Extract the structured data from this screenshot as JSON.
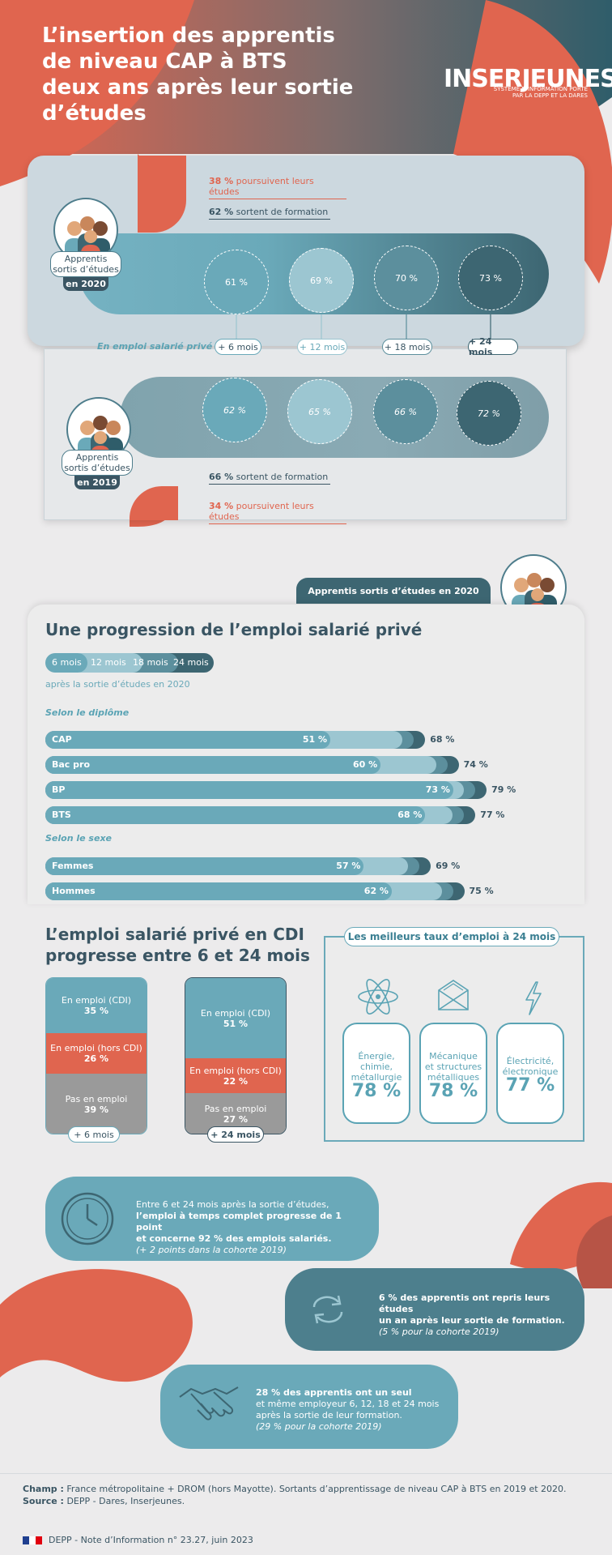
{
  "header": {
    "title_lines": [
      "L’insertion des apprentis",
      "de niveau CAP à BTS",
      "deux ans après leur sortie",
      "d’études"
    ],
    "logo": "INSERJEUNES",
    "logo_sub_1": "SYSTÈME D’INFORMATION PORTÉ",
    "logo_sub_2": "PAR LA DEPP ET LA DARES"
  },
  "cohorts": {
    "c2020": {
      "studies_pct": "38 %",
      "studies_text": "poursuivent leurs études",
      "leave_pct": "62 %",
      "leave_text": "sortent de formation",
      "badge_line1": "Apprentis",
      "badge_line2": "sortis d’études",
      "year": "en 2020",
      "rates": [
        "61 %",
        "69 %",
        "70 %",
        "73 %"
      ]
    },
    "c2019": {
      "studies_pct": "34 %",
      "studies_text": "poursuivent leurs études",
      "leave_pct": "66 %",
      "leave_text": "sortent de formation",
      "badge_line1": "Apprentis",
      "badge_line2": "sortis d’études",
      "year": "en 2019",
      "rates": [
        "62 %",
        "65 %",
        "66 %",
        "72 %"
      ]
    },
    "employment_label": "En emploi salarié privé à",
    "horizons": [
      "+ 6 mois",
      "+ 12 mois",
      "+ 18 mois",
      "+ 24 mois"
    ]
  },
  "progression": {
    "tab": "Apprentis sortis d’études en 2020",
    "title": "Une progression de l’emploi salarié privé",
    "legend": [
      "6 mois",
      "12 mois",
      "18 mois",
      "24 mois"
    ],
    "legend_caption": "après la sortie d’études en 2020",
    "by_diploma_label": "Selon le diplôme",
    "by_sex_label": "Selon le sexe",
    "colors": [
      "#6aa9b9",
      "#9cc6d1",
      "#5c8f9d",
      "#3d6672"
    ]
  },
  "chart_data": {
    "type": "bar",
    "unit": "%",
    "groups": [
      {
        "label": "Selon le diplôme",
        "categories": [
          "CAP",
          "Bac pro",
          "BP",
          "BTS"
        ],
        "series": [
          {
            "name": "6 mois",
            "values": [
              51,
              60,
              73,
              68
            ]
          },
          {
            "name": "24 mois",
            "values": [
              68,
              74,
              79,
              77
            ]
          }
        ]
      },
      {
        "label": "Selon le sexe",
        "categories": [
          "Femmes",
          "Hommes"
        ],
        "series": [
          {
            "name": "6 mois",
            "values": [
              57,
              62
            ]
          },
          {
            "name": "24 mois",
            "values": [
              69,
              75
            ]
          }
        ]
      }
    ],
    "labels_6": [
      "51 %",
      "60 %",
      "73 %",
      "68 %",
      "57 %",
      "62 %"
    ],
    "labels_24": [
      "68 %",
      "74 %",
      "79 %",
      "77 %",
      "69 %",
      "75 %"
    ]
  },
  "cdi": {
    "title_line1": "L’emploi salarié privé en CDI",
    "title_line2": "progresse entre 6 et 24 mois",
    "col6": {
      "label": "+ 6 mois",
      "segments": [
        {
          "name": "En emploi (CDI)",
          "value": "35 %",
          "pct": 35
        },
        {
          "name": "En emploi (hors CDI)",
          "value": "26 %",
          "pct": 26
        },
        {
          "name": "Pas en emploi",
          "value": "39 %",
          "pct": 39
        }
      ]
    },
    "col24": {
      "label": "+ 24 mois",
      "segments": [
        {
          "name": "En emploi (CDI)",
          "value": "51 %",
          "pct": 51
        },
        {
          "name": "En emploi (hors CDI)",
          "value": "22 %",
          "pct": 22
        },
        {
          "name": "Pas en emploi",
          "value": "27 %",
          "pct": 27
        }
      ]
    }
  },
  "best": {
    "title": "Les meilleurs taux d’emploi à 24 mois",
    "items": [
      {
        "icon": "atom-icon",
        "l1": "Énergie,",
        "l2": "chimie,",
        "l3": "métallurgie",
        "pct": "78 %"
      },
      {
        "icon": "envelope-structure-icon",
        "l1": "Mécanique",
        "l2": "et structures",
        "l3": "métalliques",
        "pct": "78 %"
      },
      {
        "icon": "lightning-icon",
        "l1": "Électricité,",
        "l2": "électronique",
        "l3": "",
        "pct": "77 %"
      }
    ]
  },
  "facts": {
    "f1_l1": "Entre 6 et 24 mois après la sortie d’études,",
    "f1_l2": "l’emploi à temps complet progresse de 1 point",
    "f1_l3": "et concerne 92 % des emplois salariés.",
    "f1_l4": "(+ 2 points dans la cohorte 2019)",
    "f2_l1": "6 % des apprentis ont repris leurs études",
    "f2_l2": "un an après leur sortie de formation.",
    "f2_l3": "(5 % pour la cohorte 2019)",
    "f3_l1": "28 % des apprentis ont un seul",
    "f3_l2": "et même employeur 6, 12, 18 et 24 mois",
    "f3_l3": "après la sortie de leur formation.",
    "f3_l4": "(29 % pour la cohorte 2019)"
  },
  "footer": {
    "champ_label": "Champ :",
    "champ": "France métropolitaine + DROM (hors Mayotte). Sortants d’apprentissage de niveau CAP à BTS en 2019 et 2020.",
    "source_label": "Source :",
    "source": "DEPP - Dares, Inserjeunes.",
    "note": "DEPP - Note d’Information n° 23.27, juin 2023"
  }
}
